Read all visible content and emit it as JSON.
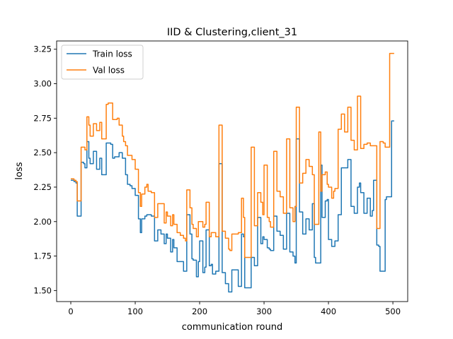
{
  "chart_data": {
    "type": "line",
    "title": "IID & Clustering,client_31",
    "xlabel": "communication round",
    "ylabel": "loss",
    "xlim": [
      -22,
      523
    ],
    "ylim": [
      1.42,
      3.31
    ],
    "xticks": [
      0,
      100,
      200,
      300,
      400,
      500
    ],
    "yticks": [
      1.5,
      1.75,
      2.0,
      2.25,
      2.5,
      2.75,
      3.0,
      3.25
    ],
    "xtick_labels": [
      "0",
      "100",
      "200",
      "300",
      "400",
      "500"
    ],
    "ytick_labels": [
      "1.50",
      "1.75",
      "2.00",
      "2.25",
      "2.50",
      "2.75",
      "3.00",
      "3.25"
    ],
    "grid": false,
    "legend_position": "top-left",
    "series": [
      {
        "name": "Train loss",
        "color": "#1f77b4",
        "x": [
          0,
          5,
          8,
          10,
          14,
          16,
          20,
          22,
          25,
          28,
          30,
          35,
          40,
          45,
          48,
          50,
          55,
          58,
          62,
          65,
          68,
          72,
          75,
          80,
          82,
          85,
          88,
          92,
          95,
          100,
          105,
          108,
          110,
          115,
          118,
          120,
          125,
          130,
          135,
          140,
          145,
          148,
          150,
          155,
          158,
          160,
          165,
          170,
          175,
          178,
          180,
          185,
          188,
          190,
          195,
          198,
          200,
          205,
          208,
          210,
          215,
          218,
          220,
          225,
          230,
          235,
          240,
          245,
          247,
          250,
          255,
          260,
          265,
          268,
          270,
          275,
          280,
          285,
          290,
          295,
          298,
          300,
          305,
          308,
          310,
          315,
          320,
          325,
          330,
          335,
          340,
          345,
          348,
          350,
          355,
          360,
          365,
          370,
          375,
          378,
          380,
          385,
          388,
          390,
          395,
          398,
          400,
          405,
          408,
          410,
          415,
          420,
          425,
          430,
          435,
          440,
          445,
          448,
          450,
          455,
          460,
          465,
          468,
          470,
          475,
          478,
          480,
          485,
          488,
          490,
          495,
          498,
          500
        ],
        "values": [
          2.3,
          2.29,
          2.28,
          2.04,
          2.04,
          2.43,
          2.42,
          2.39,
          2.58,
          2.46,
          2.42,
          2.51,
          2.38,
          2.46,
          2.34,
          2.34,
          2.57,
          2.57,
          2.56,
          2.46,
          2.47,
          2.47,
          2.5,
          2.46,
          2.46,
          2.34,
          2.27,
          2.26,
          2.24,
          2.19,
          2.02,
          1.92,
          2.02,
          2.04,
          2.05,
          2.05,
          2.04,
          1.86,
          1.94,
          1.91,
          1.84,
          1.91,
          1.88,
          1.78,
          1.87,
          1.81,
          1.71,
          1.71,
          1.64,
          1.64,
          2.05,
          1.91,
          1.73,
          1.72,
          1.6,
          1.71,
          1.86,
          1.63,
          1.67,
          1.94,
          1.68,
          1.69,
          1.62,
          1.64,
          2.42,
          1.63,
          1.55,
          1.49,
          1.49,
          1.65,
          1.65,
          1.53,
          1.91,
          1.89,
          1.52,
          1.52,
          1.74,
          1.68,
          2.03,
          1.84,
          1.89,
          1.87,
          1.81,
          1.8,
          1.79,
          2.04,
          1.93,
          1.9,
          1.8,
          2.06,
          1.78,
          1.75,
          1.7,
          2.6,
          2.07,
          1.91,
          2.02,
          1.94,
          2.13,
          1.74,
          1.7,
          1.7,
          2.41,
          2.03,
          2.15,
          2.16,
          1.87,
          1.82,
          1.82,
          1.86,
          2.05,
          2.39,
          2.39,
          2.45,
          2.11,
          2.06,
          2.25,
          2.28,
          2.21,
          2.06,
          2.17,
          2.04,
          2.08,
          2.3,
          1.83,
          1.82,
          1.64,
          1.64,
          2.16,
          2.18,
          2.18,
          2.73,
          2.73
        ]
      },
      {
        "name": "Val loss",
        "color": "#ff7f0e",
        "x": [
          0,
          5,
          8,
          10,
          14,
          16,
          20,
          22,
          25,
          28,
          30,
          35,
          40,
          45,
          48,
          50,
          55,
          58,
          62,
          65,
          68,
          72,
          75,
          80,
          82,
          85,
          88,
          92,
          95,
          100,
          105,
          108,
          110,
          115,
          118,
          120,
          125,
          130,
          135,
          140,
          145,
          148,
          150,
          155,
          158,
          160,
          165,
          170,
          175,
          178,
          180,
          185,
          188,
          190,
          195,
          198,
          200,
          205,
          208,
          210,
          215,
          218,
          220,
          225,
          230,
          235,
          240,
          245,
          247,
          250,
          255,
          260,
          265,
          268,
          270,
          275,
          280,
          285,
          290,
          295,
          298,
          300,
          305,
          308,
          310,
          315,
          320,
          325,
          330,
          335,
          340,
          345,
          348,
          350,
          355,
          360,
          365,
          370,
          375,
          378,
          380,
          385,
          388,
          390,
          395,
          398,
          400,
          405,
          408,
          410,
          415,
          420,
          425,
          430,
          435,
          440,
          445,
          448,
          450,
          455,
          460,
          465,
          468,
          470,
          475,
          478,
          480,
          485,
          488,
          490,
          495,
          498,
          500
        ],
        "values": [
          2.31,
          2.3,
          2.29,
          2.15,
          2.15,
          2.54,
          2.54,
          2.52,
          2.76,
          2.7,
          2.62,
          2.71,
          2.66,
          2.72,
          2.6,
          2.6,
          2.85,
          2.86,
          2.86,
          2.74,
          2.74,
          2.75,
          2.7,
          2.62,
          2.58,
          2.55,
          2.48,
          2.48,
          2.45,
          2.38,
          2.21,
          2.11,
          2.2,
          2.25,
          2.27,
          2.22,
          2.21,
          2.03,
          2.13,
          2.13,
          1.99,
          2.07,
          2.04,
          1.97,
          2.05,
          1.98,
          1.92,
          1.9,
          1.88,
          1.86,
          2.23,
          2.1,
          1.98,
          1.95,
          1.89,
          2.0,
          2.0,
          1.96,
          1.98,
          2.14,
          1.89,
          1.92,
          1.92,
          1.89,
          2.7,
          1.93,
          1.88,
          1.8,
          1.79,
          1.91,
          1.91,
          1.92,
          2.17,
          2.03,
          1.74,
          1.74,
          2.54,
          1.97,
          2.21,
          2.14,
          2.05,
          2.41,
          2.03,
          2.0,
          1.96,
          2.51,
          2.22,
          2.18,
          2.06,
          2.6,
          2.1,
          2.0,
          2.11,
          2.83,
          2.28,
          2.35,
          2.45,
          2.4,
          2.34,
          1.98,
          1.98,
          2.65,
          2.22,
          2.34,
          2.36,
          2.27,
          2.25,
          2.17,
          2.22,
          2.24,
          2.67,
          2.78,
          2.65,
          2.83,
          2.59,
          2.52,
          2.91,
          2.91,
          2.53,
          2.56,
          2.57,
          2.55,
          2.55,
          2.55,
          1.95,
          1.95,
          2.58,
          2.57,
          2.54,
          2.54,
          3.22,
          3.22,
          3.22
        ]
      }
    ]
  }
}
